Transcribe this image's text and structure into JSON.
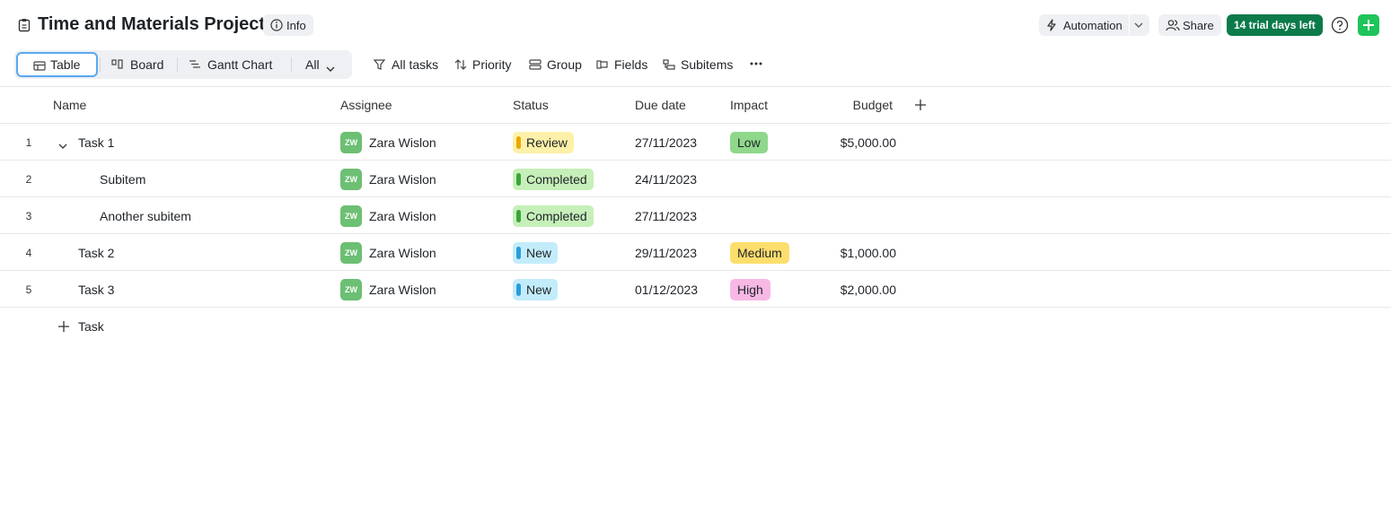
{
  "header": {
    "title": "Time and Materials Project",
    "info": "Info",
    "automation": "Automation",
    "share": "Share",
    "trial": "14 trial days left"
  },
  "toolbar": {
    "views": [
      "Table",
      "Board",
      "Gantt Chart"
    ],
    "scope": "All",
    "actions": [
      "All tasks",
      "Priority",
      "Group",
      "Fields",
      "Subitems"
    ]
  },
  "table": {
    "columns": [
      "Name",
      "Assignee",
      "Status",
      "Due date",
      "Impact",
      "Budget"
    ],
    "rows": [
      {
        "index": 1,
        "name": "Task 1",
        "avatar": "ZW",
        "assignee": "Zara Wislon",
        "status": "Review",
        "status_color": {
          "bg": "#fdf0a8",
          "bar": "#e8a900"
        },
        "due": "27/11/2023",
        "impact": "Low",
        "impact_color": "#8fd88b",
        "budget": "$5,000.00",
        "subitems": [
          {
            "index": 2,
            "name": "Subitem",
            "avatar": "ZW",
            "assignee": "Zara Wislon",
            "status": "Completed",
            "status_color": {
              "bg": "#c6efb9",
              "bar": "#3aa63a"
            },
            "due": "24/11/2023"
          },
          {
            "index": 3,
            "name": "Another subitem",
            "avatar": "ZW",
            "assignee": "Zara Wislon",
            "status": "Completed",
            "status_color": {
              "bg": "#c6efb9",
              "bar": "#3aa63a"
            },
            "due": "27/11/2023"
          }
        ]
      },
      {
        "index": 4,
        "name": "Task 2",
        "avatar": "ZW",
        "assignee": "Zara Wislon",
        "status": "New",
        "status_color": {
          "bg": "#c3ecfb",
          "bar": "#2b9cd8"
        },
        "due": "29/11/2023",
        "impact": "Medium",
        "impact_color": "#fcde6d",
        "budget": "$1,000.00"
      },
      {
        "index": 5,
        "name": "Task 3",
        "avatar": "ZW",
        "assignee": "Zara Wislon",
        "status": "New",
        "status_color": {
          "bg": "#c3ecfb",
          "bar": "#2b9cd8"
        },
        "due": "01/12/2023",
        "impact": "High",
        "impact_color": "#f7b8e6",
        "budget": "$2,000.00"
      }
    ],
    "add_row": "Task"
  }
}
